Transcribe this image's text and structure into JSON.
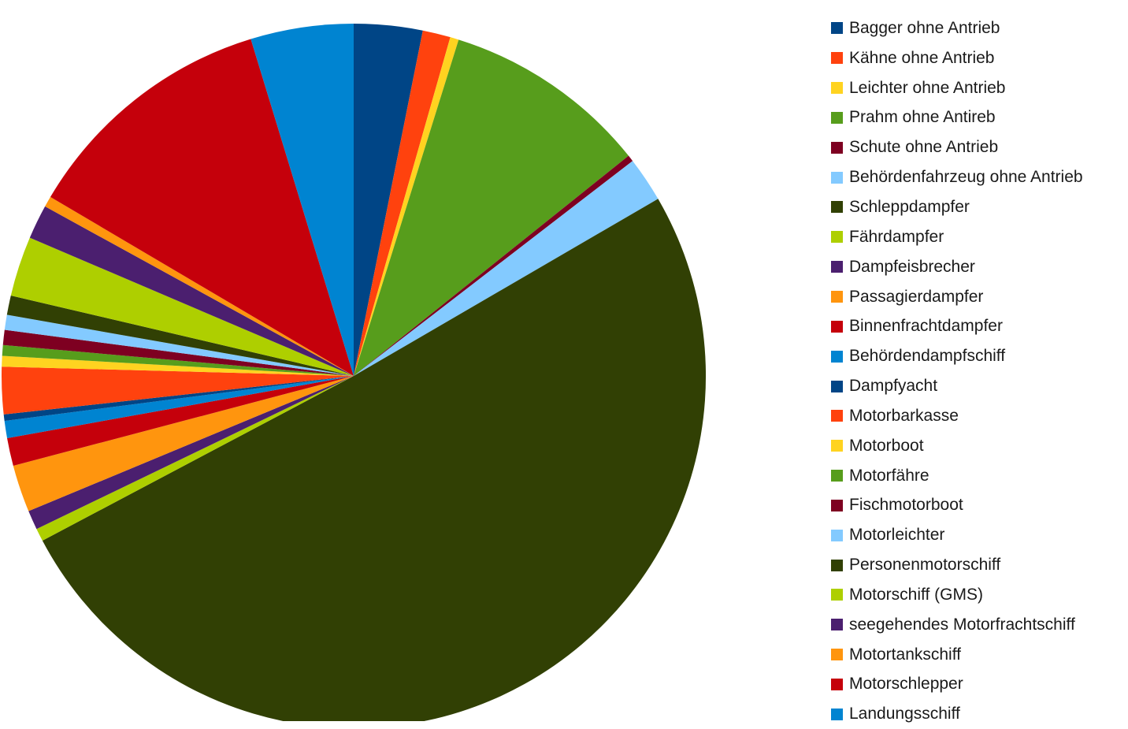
{
  "chart_data": {
    "type": "pie",
    "title": "",
    "legend_position": "right",
    "start_angle_deg": 0,
    "direction": "clockwise",
    "slices": [
      {
        "label": "Bagger ohne Antrieb",
        "value": 3.2,
        "color": "#004586"
      },
      {
        "label": "Kähne ohne Antrieb",
        "value": 1.3,
        "color": "#ff420e"
      },
      {
        "label": "Leichter ohne Antrieb",
        "value": 0.4,
        "color": "#ffd320"
      },
      {
        "label": "Prahm ohne Antireb",
        "value": 9.6,
        "color": "#579d1c"
      },
      {
        "label": "Schute ohne Antrieb",
        "value": 0.3,
        "color": "#7e0021"
      },
      {
        "label": "Behördenfahrzeug ohne Antrieb",
        "value": 2.1,
        "color": "#83caff"
      },
      {
        "label": "Schleppdampfer",
        "value": 0.0,
        "color": "#314004"
      },
      {
        "label": "Fährdampfer",
        "value": 0.0,
        "color": "#aecf00"
      },
      {
        "label": "Dampfeisbrecher",
        "value": 0.0,
        "color": "#4b1f6f"
      },
      {
        "label": "Passagierdampfer",
        "value": 0.0,
        "color": "#ff950e"
      },
      {
        "label": "Binnenfrachtdampfer",
        "value": 0.0,
        "color": "#c5000b"
      },
      {
        "label": "Behördendampfschiff",
        "value": 0.0,
        "color": "#0084d1"
      },
      {
        "label": "Dampfyacht",
        "value": 0.0,
        "color": "#004586"
      },
      {
        "label": "Motorbarkasse",
        "value": 0.0,
        "color": "#ff420e"
      },
      {
        "label": "Motorboot",
        "value": 0.0,
        "color": "#ffd320"
      },
      {
        "label": "Motorfähre",
        "value": 0.0,
        "color": "#579d1c"
      },
      {
        "label": "Fischmotorboot",
        "value": 0.0,
        "color": "#7e0021"
      },
      {
        "label": "Motorleichter",
        "value": 0.0,
        "color": "#83caff"
      },
      {
        "label": "Personenmotorschiff",
        "value": 51.5,
        "color": "#314004"
      },
      {
        "label": "Motorschiff (GMS)",
        "value": 0.6,
        "color": "#aecf00"
      },
      {
        "label": "seegehendes Motorfrachtschiff",
        "value": 0.9,
        "color": "#4b1f6f"
      },
      {
        "label": "Motortankschiff",
        "value": 2.2,
        "color": "#ff950e"
      },
      {
        "label": "Motorschlepper",
        "value": 1.3,
        "color": "#c5000b"
      },
      {
        "label": "Landungsschiff",
        "value": 0.8,
        "color": "#0084d1"
      },
      {
        "label": "",
        "value": 0.3,
        "color": "#004586"
      },
      {
        "label": "",
        "value": 2.2,
        "color": "#ff420e"
      },
      {
        "label": "",
        "value": 0.5,
        "color": "#ffd320"
      },
      {
        "label": "",
        "value": 0.5,
        "color": "#579d1c"
      },
      {
        "label": "",
        "value": 0.7,
        "color": "#7e0021"
      },
      {
        "label": "",
        "value": 0.7,
        "color": "#83caff"
      },
      {
        "label": "",
        "value": 0.9,
        "color": "#314004"
      },
      {
        "label": "",
        "value": 2.8,
        "color": "#aecf00"
      },
      {
        "label": "",
        "value": 1.6,
        "color": "#4b1f6f"
      },
      {
        "label": "",
        "value": 0.5,
        "color": "#ff950e"
      },
      {
        "label": "",
        "value": 12.0,
        "color": "#c5000b"
      },
      {
        "label": "",
        "value": 4.8,
        "color": "#0084d1"
      }
    ]
  }
}
